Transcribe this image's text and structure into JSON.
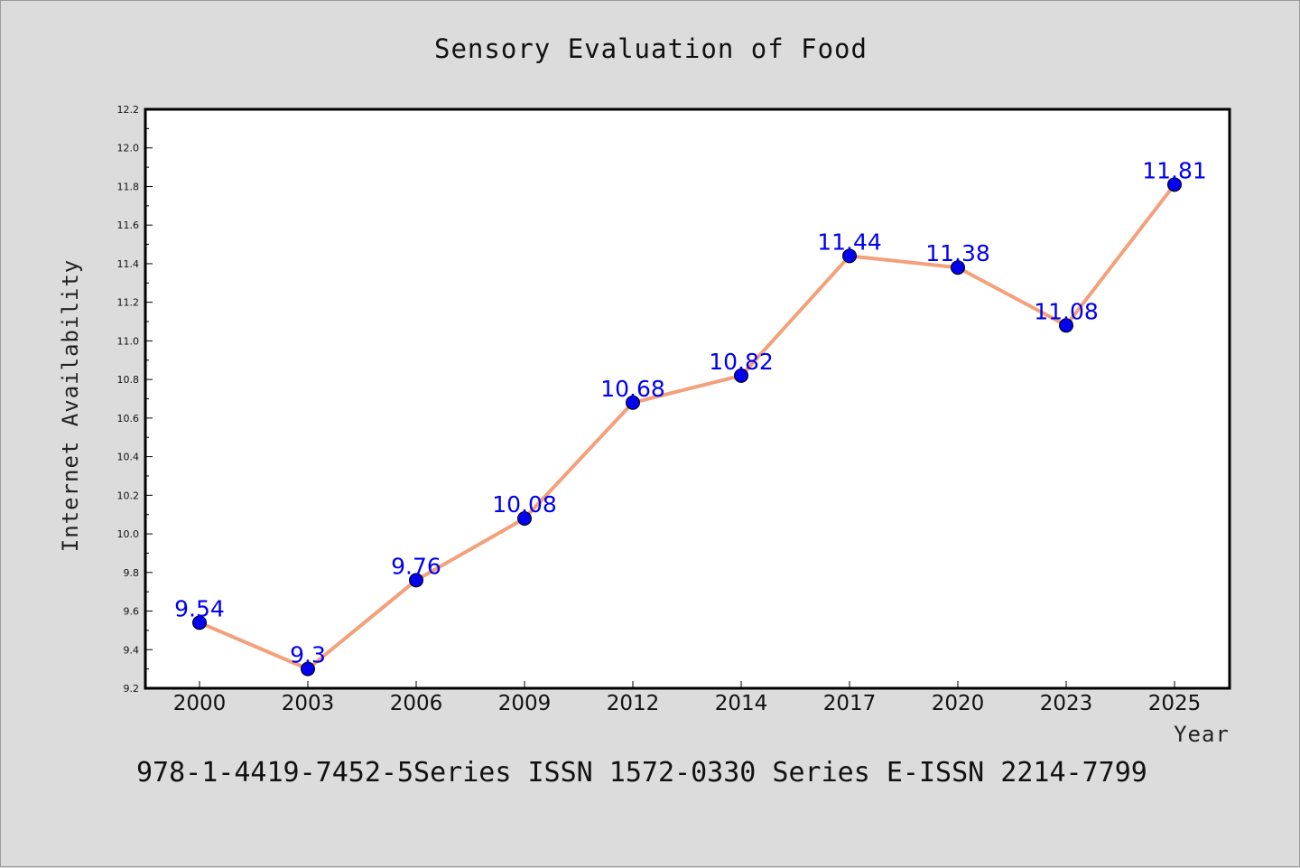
{
  "chart_data": {
    "type": "line",
    "title": "Sensory Evaluation of Food",
    "xlabel": "Year",
    "ylabel": "Internet Availability",
    "categories": [
      "2000",
      "2003",
      "2006",
      "2009",
      "2012",
      "2014",
      "2017",
      "2020",
      "2023",
      "2025"
    ],
    "series": [
      {
        "values": [
          9.54,
          9.3,
          9.76,
          10.08,
          10.68,
          10.82,
          11.44,
          11.38,
          11.08,
          11.81
        ],
        "labels": [
          "9.54",
          "9.3",
          "9.76",
          "10.08",
          "10.68",
          "10.82",
          "11.44",
          "11.38",
          "11.08",
          "11.81"
        ]
      }
    ],
    "ylim": [
      9.2,
      12.2
    ],
    "yticks": [
      "9.2",
      "9.4",
      "9.6",
      "9.8",
      "10.0",
      "10.2",
      "10.4",
      "10.6",
      "10.8",
      "11.0",
      "11.2",
      "11.4",
      "11.6",
      "11.8",
      "12.0",
      "12.2"
    ],
    "grid": false,
    "colors": {
      "line": "#f4a07a",
      "marker": "#0000ee",
      "data_label": "#0000ee",
      "background": "#dcdcdc",
      "plot_background": "#ffffff"
    }
  },
  "footer": "978-1-4419-7452-5Series ISSN 1572-0330 Series E-ISSN 2214-7799"
}
